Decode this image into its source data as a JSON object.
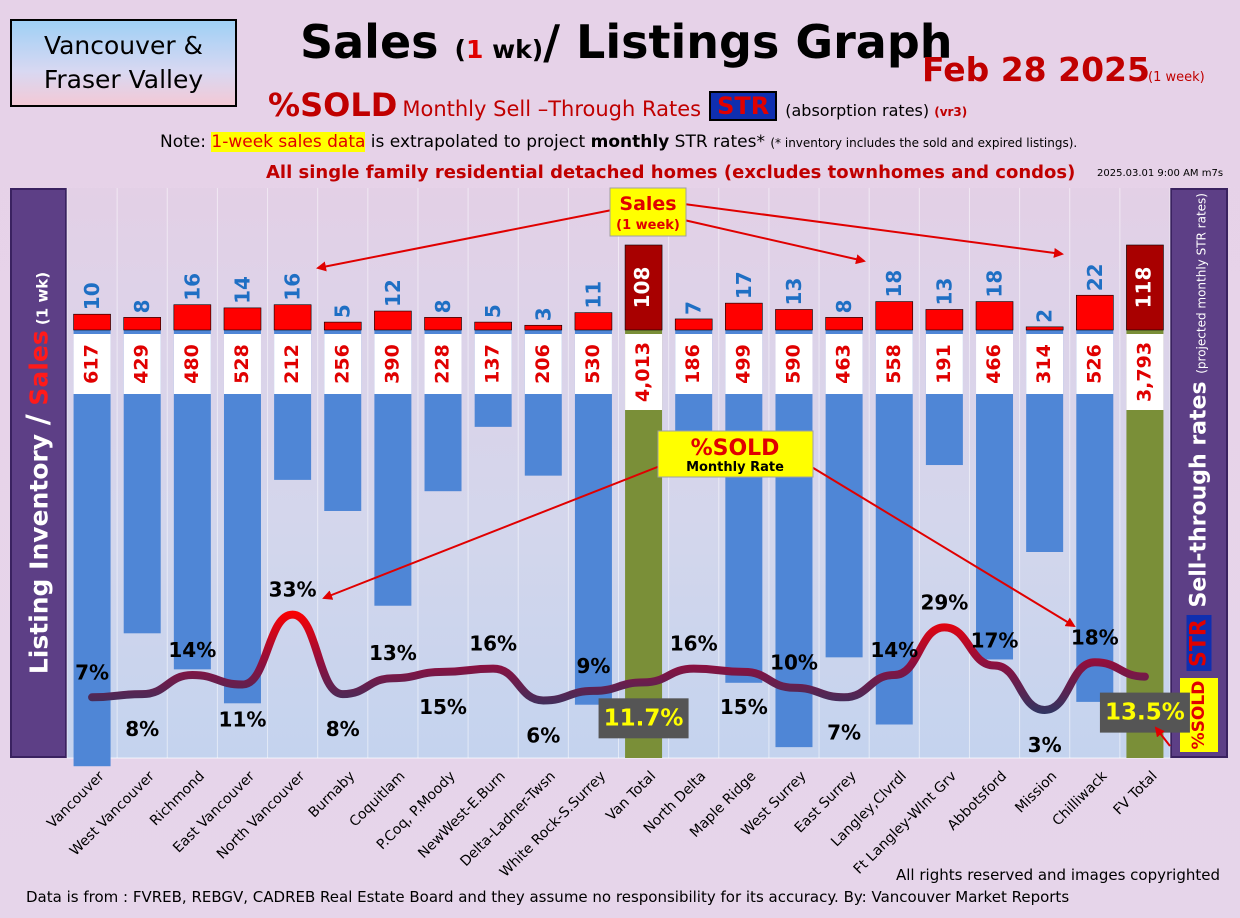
{
  "header": {
    "region_line1": "Vancouver &",
    "region_line2": "Fraser Valley",
    "title_pre": "Sales ",
    "title_paren_open": "(",
    "title_num": "1",
    "title_paren_rest": " wk)",
    "title_post": "/ Listings Graph",
    "date": "Feb 28  2025",
    "date_note": "(1 week)",
    "sold_big": "%SOLD",
    "str_sub": "Monthly Sell –Through Rates",
    "str_badge": "STR",
    "abs_note": "(absorption rates)",
    "vr3": "(vr3)",
    "note_pre": "Note: ",
    "note_hl": "1-week sales data",
    "note_mid": " is extrapolated to project ",
    "note_bold": "monthly",
    "note_post": " STR rates* ",
    "note_small": "(* inventory includes the sold and expired listings).",
    "note_line": "All single family residential detached homes (excludes townhomes and condos)",
    "timestamp": "2025.03.01 9:00 AM m7s"
  },
  "side_labels": {
    "left_main": "Listing Inventory ",
    "left_slash": "/",
    "left_sales": " Sales",
    "left_wk": " (1 wk)",
    "right_main": "Sell-through rates ",
    "right_proj": "(projected monthly STR rates)",
    "right_str": "STR",
    "right_sold": "%SOLD"
  },
  "callouts": {
    "sales_title": "Sales",
    "sales_sub": "(1 week)",
    "sold_title": "%SOLD",
    "sold_sub": "Monthly Rate"
  },
  "footer": {
    "rights": "All rights reserved and  images copyrighted",
    "source": "Data is from : FVREB, REBGV, CADREB Real Estate Board and they assume no responsibility for its accuracy. By: Vancouver Market Reports"
  },
  "colors": {
    "sales_bar": "#ff0000",
    "sales_total_bar": "#a80000",
    "listing_bar": "#4f86d6",
    "total_listing_bar": "#7a8f38",
    "line_low": "#233a66",
    "line_high": "#ff0000",
    "sales_label": "#1f6fc4",
    "inventory_label": "#e00000"
  },
  "chart_data": {
    "type": "bar",
    "categories": [
      "Vancouver",
      "West Vancouver",
      "Richmond",
      "East Vancouver",
      "North Vancouver",
      "Burnaby",
      "Coquitlam",
      "P.Coq, P.Moody",
      "NewWest-E.Burn",
      "Delta-Ladner-Twsn",
      "White Rock-S.Surrey",
      "Van Total",
      "North Delta",
      "Maple Ridge",
      "West Surrey",
      "East Surrey",
      "Langley,Clvrdl",
      "Ft Langley-Wlnt Grv",
      "Abbotsford",
      "Mission",
      "Chilliwack",
      "FV Total"
    ],
    "series": [
      {
        "name": "Sales",
        "values": [
          10,
          8,
          16,
          14,
          16,
          5,
          12,
          8,
          5,
          3,
          11,
          108,
          7,
          17,
          13,
          8,
          18,
          13,
          18,
          2,
          22,
          118
        ]
      },
      {
        "name": "Listing Inventory",
        "values": [
          617,
          429,
          480,
          528,
          212,
          256,
          390,
          228,
          137,
          206,
          530,
          4013,
          186,
          499,
          590,
          463,
          558,
          191,
          466,
          314,
          526,
          3793
        ]
      },
      {
        "name": "%SOLD",
        "values": [
          7,
          8,
          14,
          11,
          33,
          8,
          13,
          15,
          16,
          6,
          9,
          11.7,
          16,
          15,
          10,
          7,
          14,
          29,
          17,
          3,
          18,
          13.5
        ]
      }
    ],
    "value_labels": {
      "sales": [
        "10",
        "8",
        "16",
        "14",
        "16",
        "5",
        "12",
        "8",
        "5",
        "3",
        "11",
        "108",
        "7",
        "17",
        "13",
        "8",
        "18",
        "13",
        "18",
        "2",
        "22",
        "118"
      ],
      "inventory": [
        "617",
        "429",
        "480",
        "528",
        "212",
        "256",
        "390",
        "228",
        "137",
        "206",
        "530",
        "4,013",
        "186",
        "499",
        "590",
        "463",
        "558",
        "191",
        "466",
        "314",
        "526",
        "3,793"
      ],
      "str": [
        "7%",
        "8%",
        "14%",
        "11%",
        "33%",
        "8%",
        "13%",
        "15%",
        "16%",
        "6%",
        "9%",
        "11.7%",
        "16%",
        "15%",
        "10%",
        "7%",
        "14%",
        "29%",
        "17%",
        "3%",
        "18%",
        "13.5%"
      ]
    },
    "total_indices": [
      11,
      21
    ],
    "ylabel_left": "Listing Inventory / Sales (1 wk)",
    "ylabel_right": "Sell-through rates (projected monthly STR rates)"
  }
}
